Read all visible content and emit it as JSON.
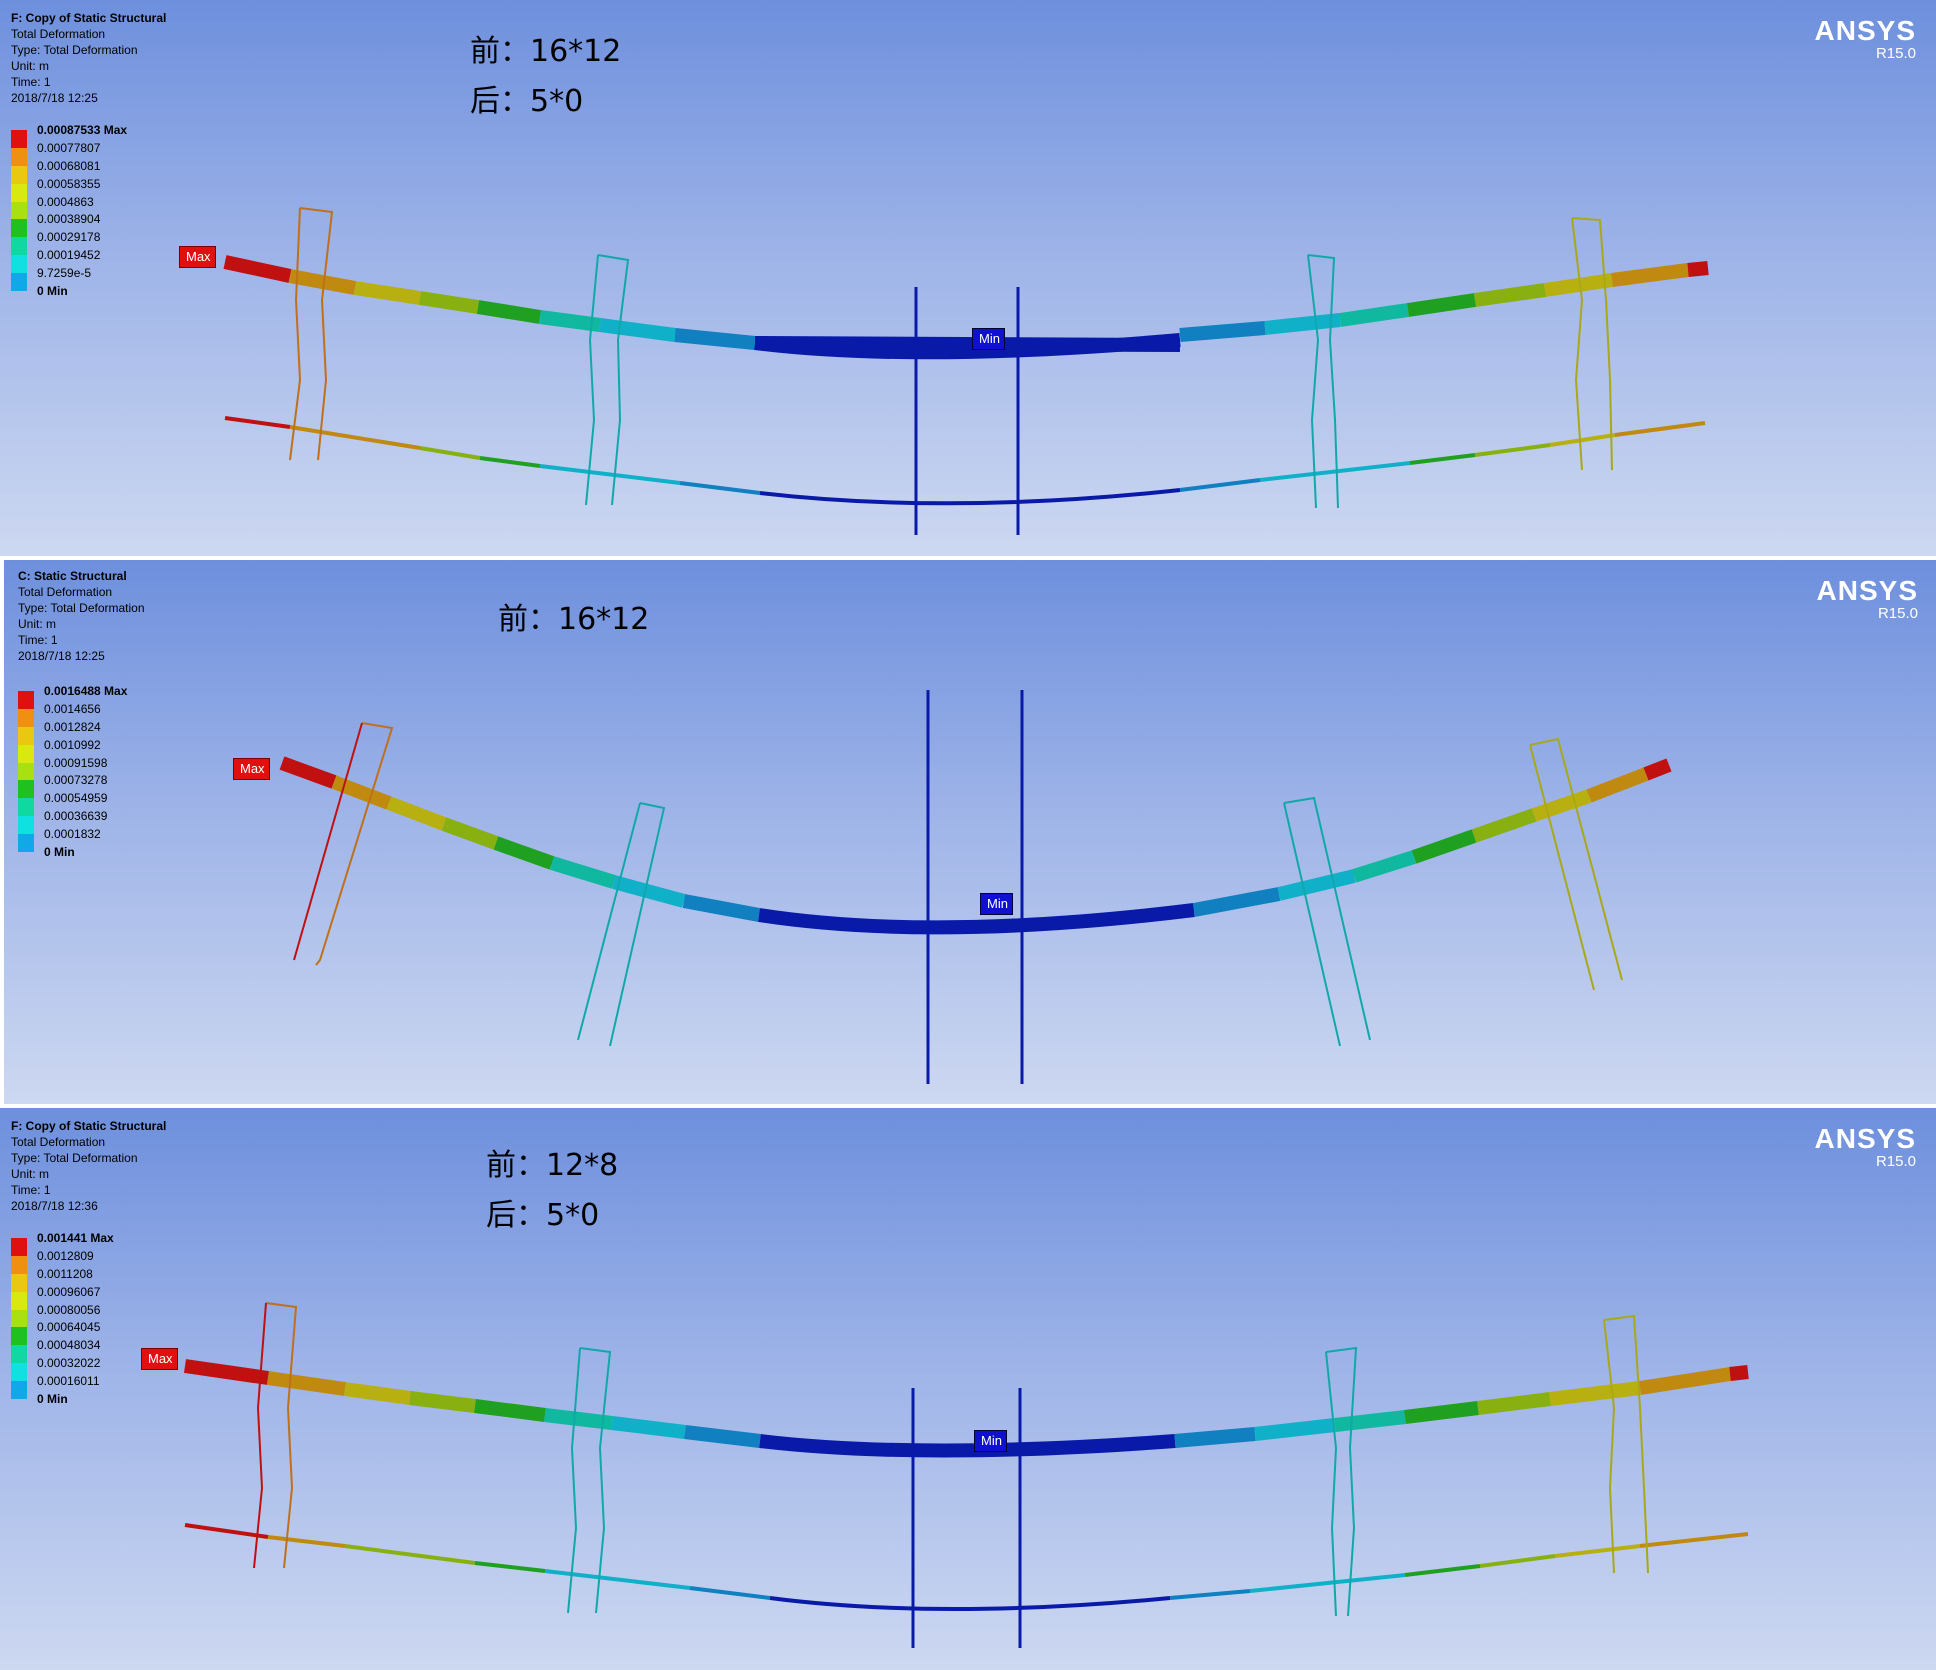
{
  "legend_colors": [
    "#e01010",
    "#f09010",
    "#e8c810",
    "#d8e810",
    "#a8e010",
    "#20c020",
    "#10d8a0",
    "#10e0e0",
    "#10a8e8",
    "#0000c8"
  ],
  "panels": [
    {
      "title": "F: Copy of Static Structural",
      "result": "Total Deformation",
      "type": "Type: Total Deformation",
      "unit": "Unit: m",
      "time": "Time: 1",
      "date": "2018/7/18 12:25",
      "legend": [
        "0.00087533 Max",
        "0.00077807",
        "0.00068081",
        "0.00058355",
        "0.0004863",
        "0.00038904",
        "0.00029178",
        "0.00019452",
        "9.7259e-5",
        "0 Min"
      ],
      "note1": "前：16*12",
      "note2": "后：5*0",
      "brand": "ANSYS",
      "version": "R15.0",
      "max_tag": "Max",
      "min_tag": "Min"
    },
    {
      "title": "C: Static Structural",
      "result": "Total Deformation",
      "type": "Type: Total Deformation",
      "unit": "Unit: m",
      "time": "Time: 1",
      "date": "2018/7/18 12:25",
      "legend": [
        "0.0016488 Max",
        "0.0014656",
        "0.0012824",
        "0.0010992",
        "0.00091598",
        "0.00073278",
        "0.00054959",
        "0.00036639",
        "0.0001832",
        "0 Min"
      ],
      "note1": "前：16*12",
      "brand": "ANSYS",
      "version": "R15.0",
      "max_tag": "Max",
      "min_tag": "Min"
    },
    {
      "title": "F: Copy of Static Structural",
      "result": "Total Deformation",
      "type": "Type: Total Deformation",
      "unit": "Unit: m",
      "time": "Time: 1",
      "date": "2018/7/18 12:36",
      "legend": [
        "0.001441 Max",
        "0.0012809",
        "0.0011208",
        "0.00096067",
        "0.00080056",
        "0.00064045",
        "0.00048034",
        "0.00032022",
        "0.00016011",
        "0 Min"
      ],
      "note1": "前：12*8",
      "note2": "后：5*0",
      "brand": "ANSYS",
      "version": "R15.0",
      "max_tag": "Max",
      "min_tag": "Min"
    }
  ]
}
